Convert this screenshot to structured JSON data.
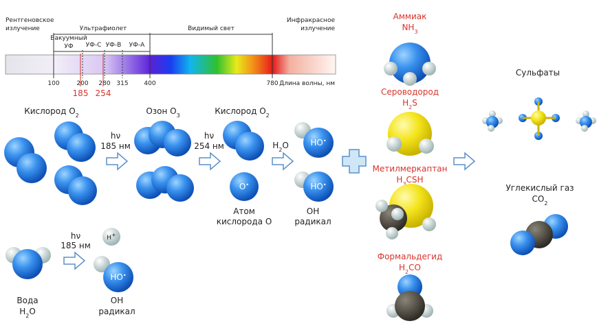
{
  "spectrum": {
    "xray": [
      "Рентгеновское",
      "излучение"
    ],
    "uv": "Ультрафиолет",
    "visible": "Видимый свет",
    "ir": [
      "Инфракрасное",
      "излучение"
    ],
    "vacuum_uv": [
      "Вакуумный",
      "УФ"
    ],
    "uvc": "УФ-С",
    "uvb": "УФ-В",
    "uva": "УФ-А",
    "ticks": [
      100,
      200,
      280,
      315,
      400,
      780
    ],
    "lamp_lines": [
      185,
      254
    ],
    "axis_label": "Длина волны, нм"
  },
  "reactions": {
    "oxygen_1": [
      {
        "text": "Кислород O"
      },
      {
        "sub": "2"
      }
    ],
    "photon_1": {
      "symbol": "hν",
      "wavelength": "185 нм"
    },
    "ozone": [
      {
        "text": "Озон O"
      },
      {
        "sub": "3"
      }
    ],
    "photon_2": {
      "symbol": "hν",
      "wavelength": "254 нм"
    },
    "oxygen_2": [
      {
        "text": "Кислород O"
      },
      {
        "sub": "2"
      }
    ],
    "water_arrow": [
      {
        "text": "H"
      },
      {
        "sub": "2"
      },
      {
        "text": "O"
      }
    ],
    "hydroxyl_1": [
      {
        "text": "HO"
      },
      {
        "sup": "•"
      }
    ],
    "hydroxyl_2": [
      {
        "text": "HO"
      },
      {
        "sup": "•"
      }
    ],
    "oxygen_atom": [
      {
        "text": "O"
      },
      {
        "sup": "•"
      }
    ],
    "oxygen_atom_caption": [
      "Атом",
      "кислорода O"
    ],
    "oh_caption": [
      "OH",
      "радикал"
    ]
  },
  "water_reaction": {
    "photon": {
      "symbol": "hν",
      "wavelength": "185 нм"
    },
    "proton": [
      {
        "text": "H"
      },
      {
        "sup": "+"
      }
    ],
    "hydroxyl": [
      {
        "text": "HO"
      },
      {
        "sup": "•"
      }
    ],
    "water_name": "Вода",
    "water_formula": [
      {
        "text": "H"
      },
      {
        "sub": "2"
      },
      {
        "text": "O"
      }
    ],
    "oh_caption": [
      "OH",
      "радикал"
    ]
  },
  "pollutants": [
    {
      "name": "Аммиак",
      "formula": [
        {
          "text": "NH"
        },
        {
          "sub": "3"
        }
      ]
    },
    {
      "name": "Сероводород",
      "formula": [
        {
          "text": "H"
        },
        {
          "sub": "2"
        },
        {
          "text": "S"
        }
      ]
    },
    {
      "name": "Метилмеркаптан",
      "formula": [
        {
          "text": "H"
        },
        {
          "sub": "3"
        },
        {
          "text": "CSH"
        }
      ]
    },
    {
      "name": "Формальдегид",
      "formula": [
        {
          "text": "H"
        },
        {
          "sub": "2"
        },
        {
          "text": "CO"
        }
      ]
    }
  ],
  "products": {
    "sulfates": "Сульфаты",
    "co2_name": "Углекислый газ",
    "co2_formula": [
      {
        "text": "CO"
      },
      {
        "sub": "2"
      }
    ]
  }
}
